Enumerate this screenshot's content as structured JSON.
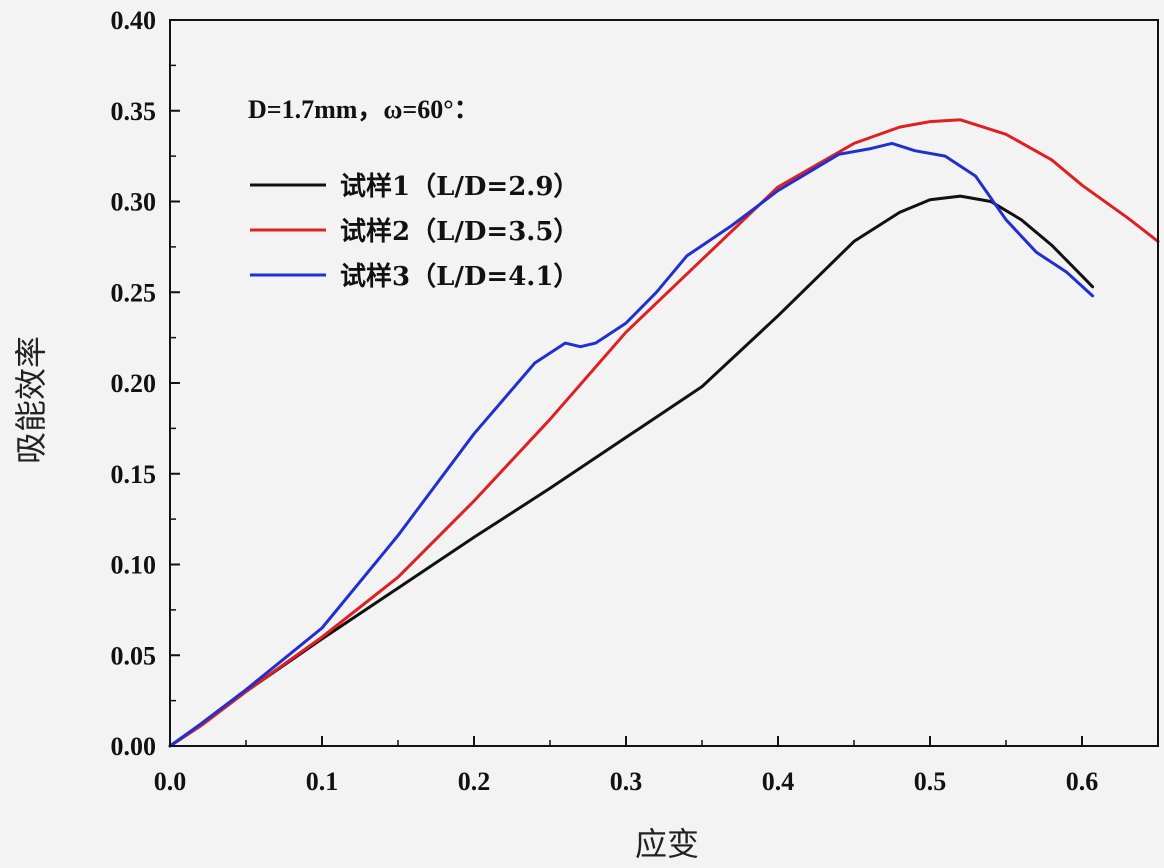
{
  "chart_data": {
    "type": "line",
    "title": "",
    "xlabel": "应变",
    "ylabel": "吸能效率",
    "xlim": [
      0.0,
      0.65
    ],
    "ylim": [
      0.0,
      0.4
    ],
    "xticks": [
      "0.0",
      "0.1",
      "0.2",
      "0.3",
      "0.4",
      "0.5",
      "0.6"
    ],
    "yticks": [
      "0.00",
      "0.05",
      "0.10",
      "0.15",
      "0.20",
      "0.25",
      "0.30",
      "0.35",
      "0.40"
    ],
    "grid": false,
    "legend_position": "top-left",
    "annotation": "D=1.7mm，ω=60°：",
    "series": [
      {
        "name": "试样1（L/D=2.9）",
        "color": "#111111",
        "x": [
          0.0,
          0.02,
          0.05,
          0.1,
          0.15,
          0.2,
          0.25,
          0.3,
          0.35,
          0.4,
          0.45,
          0.48,
          0.5,
          0.52,
          0.54,
          0.56,
          0.58,
          0.6,
          0.607
        ],
        "y": [
          0.0,
          0.011,
          0.03,
          0.059,
          0.087,
          0.115,
          0.142,
          0.17,
          0.198,
          0.237,
          0.278,
          0.294,
          0.301,
          0.303,
          0.3,
          0.29,
          0.276,
          0.259,
          0.253
        ]
      },
      {
        "name": "试样2（L/D=3.5）",
        "color": "#e02020",
        "x": [
          0.0,
          0.02,
          0.05,
          0.1,
          0.15,
          0.2,
          0.25,
          0.3,
          0.35,
          0.4,
          0.45,
          0.48,
          0.5,
          0.52,
          0.55,
          0.58,
          0.6,
          0.63,
          0.65
        ],
        "y": [
          0.0,
          0.011,
          0.03,
          0.06,
          0.093,
          0.135,
          0.18,
          0.228,
          0.268,
          0.308,
          0.332,
          0.341,
          0.344,
          0.345,
          0.337,
          0.323,
          0.309,
          0.291,
          0.278
        ]
      },
      {
        "name": "试样3（L/D=4.1）",
        "color": "#2030d0",
        "x": [
          0.0,
          0.02,
          0.05,
          0.1,
          0.15,
          0.2,
          0.24,
          0.26,
          0.27,
          0.28,
          0.3,
          0.32,
          0.34,
          0.37,
          0.4,
          0.44,
          0.46,
          0.475,
          0.49,
          0.51,
          0.53,
          0.55,
          0.57,
          0.59,
          0.607
        ],
        "y": [
          0.0,
          0.012,
          0.031,
          0.065,
          0.116,
          0.172,
          0.211,
          0.222,
          0.22,
          0.222,
          0.233,
          0.25,
          0.27,
          0.287,
          0.306,
          0.326,
          0.329,
          0.332,
          0.328,
          0.325,
          0.314,
          0.29,
          0.272,
          0.261,
          0.248
        ]
      }
    ]
  }
}
